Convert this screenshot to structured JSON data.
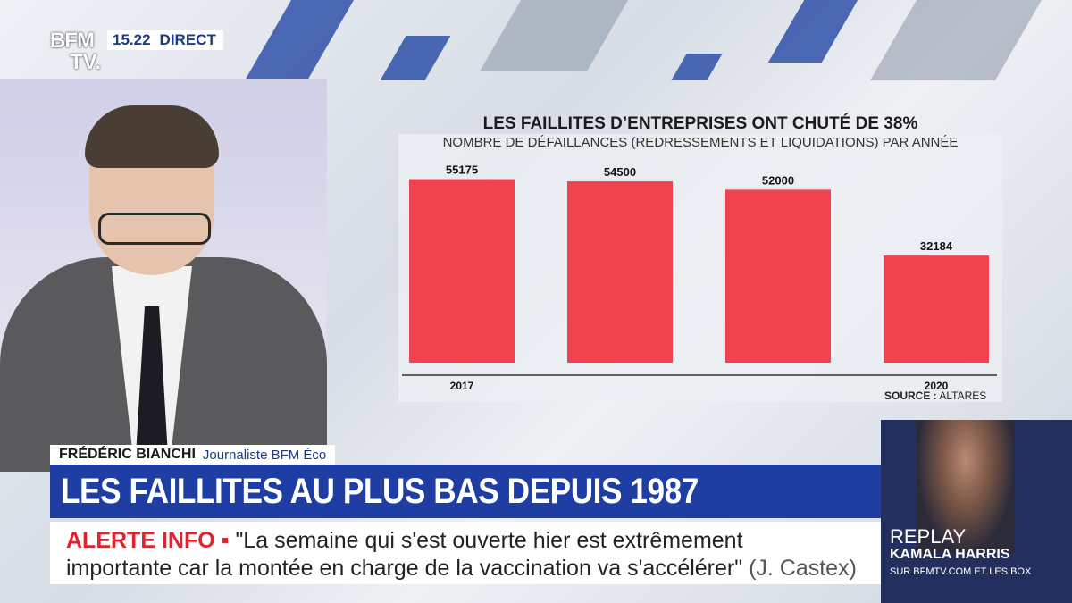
{
  "channel": {
    "logo_top": "BFM",
    "logo_bottom": "TV.",
    "time": "15.22",
    "live": "DIRECT"
  },
  "chart_data": {
    "type": "bar",
    "title": "LES FAILLITES D’ENTREPRISES ONT CHUTÉ DE 38%",
    "subtitle": "NOMBRE DE DÉFAILLANCES (REDRESSEMENTS ET LIQUIDATIONS) PAR ANNÉE",
    "categories": [
      "2017",
      "",
      "",
      "2020"
    ],
    "values": [
      55175,
      54500,
      52000,
      32184
    ],
    "value_labels": [
      "55175",
      "54500",
      "52000",
      "32184"
    ],
    "ylim": [
      0,
      58000
    ],
    "grid": false,
    "bar_color": "#f0424f",
    "source_label": "SOURCE :",
    "source_value": "ALTARES"
  },
  "lower_third": {
    "name": "FRÉDÉRIC BIANCHI",
    "role": "Journaliste BFM Éco",
    "headline": "LES FAILLITES AU PLUS BAS DEPUIS 1987"
  },
  "ticker": {
    "alert_label": "ALERTE INFO ▪",
    "line1": "\"La semaine qui s'est ouverte hier est extrêmement",
    "line2": "importante car la montée en charge de la vaccination va s'accélérer\"",
    "source": "(J. Castex)"
  },
  "replay": {
    "word": "REPLAY",
    "name": "KAMALA HARRIS",
    "site": "SUR BFMTV.COM ET LES BOX"
  },
  "colors": {
    "brand_blue": "#1f3ea3",
    "alert_red": "#e0242e"
  }
}
